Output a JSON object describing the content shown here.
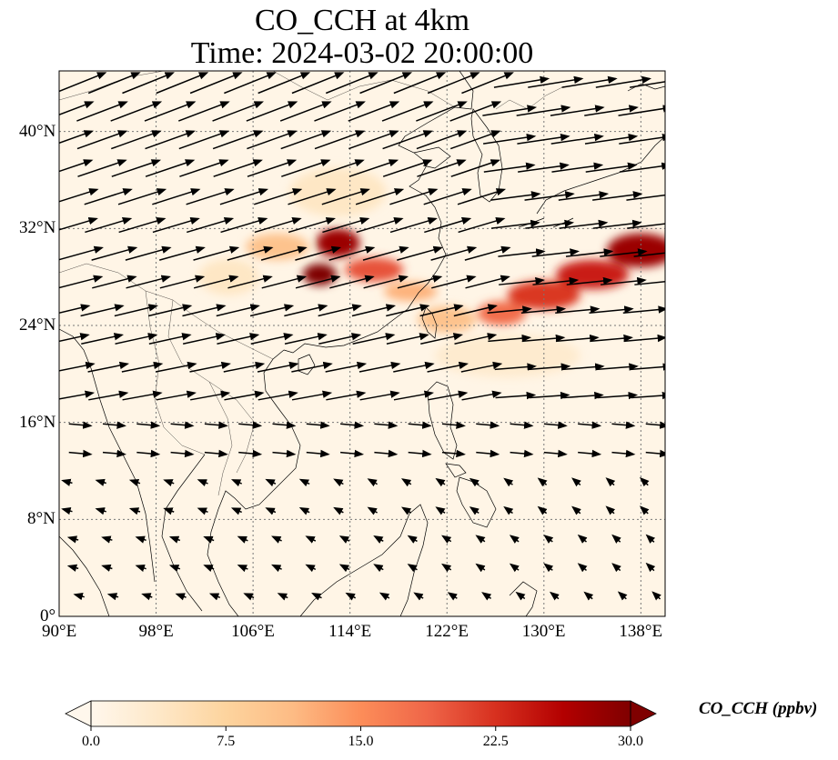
{
  "title": {
    "line1": "CO_CCH at 4km",
    "line2": "Time: 2024-03-02 20:00:00"
  },
  "map": {
    "projection": "PlateCarree",
    "lon_range": [
      90,
      140
    ],
    "lat_range": [
      0,
      45
    ],
    "gridlines": true,
    "lon_ticks": [
      {
        "value": 90,
        "label": "90°E"
      },
      {
        "value": 98,
        "label": "98°E"
      },
      {
        "value": 106,
        "label": "106°E"
      },
      {
        "value": 114,
        "label": "114°E"
      },
      {
        "value": 122,
        "label": "122°E"
      },
      {
        "value": 130,
        "label": "130°E"
      },
      {
        "value": 138,
        "label": "138°E"
      }
    ],
    "lat_ticks": [
      {
        "value": 0,
        "label": "0°"
      },
      {
        "value": 8,
        "label": "8°N"
      },
      {
        "value": 16,
        "label": "16°N"
      },
      {
        "value": 24,
        "label": "24°N"
      },
      {
        "value": 32,
        "label": "32°N"
      },
      {
        "value": 40,
        "label": "40°N"
      }
    ],
    "plumes": [
      {
        "lon": 111.5,
        "lat": 28.2,
        "lon_radius": 1.4,
        "lat_radius": 0.9,
        "value": 30
      },
      {
        "lon": 113.0,
        "lat": 30.8,
        "lon_radius": 1.8,
        "lat_radius": 1.2,
        "value": 28
      },
      {
        "lon": 116.0,
        "lat": 28.6,
        "lon_radius": 2.4,
        "lat_radius": 1.0,
        "value": 20
      },
      {
        "lon": 108.0,
        "lat": 30.5,
        "lon_radius": 2.6,
        "lat_radius": 1.1,
        "value": 10
      },
      {
        "lon": 119.0,
        "lat": 26.8,
        "lon_radius": 2.2,
        "lat_radius": 0.8,
        "value": 12
      },
      {
        "lon": 122.0,
        "lat": 24.5,
        "lon_radius": 2.4,
        "lat_radius": 1.1,
        "value": 10
      },
      {
        "lon": 126.5,
        "lat": 25.0,
        "lon_radius": 2.0,
        "lat_radius": 1.0,
        "value": 18
      },
      {
        "lon": 130.0,
        "lat": 26.5,
        "lon_radius": 3.0,
        "lat_radius": 1.2,
        "value": 22
      },
      {
        "lon": 134.0,
        "lat": 28.2,
        "lon_radius": 3.0,
        "lat_radius": 1.2,
        "value": 24
      },
      {
        "lon": 138.0,
        "lat": 30.2,
        "lon_radius": 2.8,
        "lat_radius": 1.4,
        "value": 28
      },
      {
        "lon": 113.0,
        "lat": 35.0,
        "lon_radius": 4.0,
        "lat_radius": 2.0,
        "value": 4
      },
      {
        "lon": 127.0,
        "lat": 21.5,
        "lon_radius": 6.0,
        "lat_radius": 1.8,
        "value": 3
      },
      {
        "lon": 104.0,
        "lat": 28.0,
        "lon_radius": 2.5,
        "lat_radius": 1.5,
        "value": 4
      }
    ]
  },
  "wind": {
    "arrow_color": "#000000"
  },
  "colorbar": {
    "label": "CO_CCH (ppbv)",
    "cmap": "OrRd",
    "range": [
      0,
      30
    ],
    "extend": "both",
    "ticks": [
      {
        "value": 0,
        "label": "0.0"
      },
      {
        "value": 7.5,
        "label": "7.5"
      },
      {
        "value": 15,
        "label": "15.0"
      },
      {
        "value": 22.5,
        "label": "22.5"
      },
      {
        "value": 30,
        "label": "30.0"
      }
    ],
    "colors": [
      "#fff7ec",
      "#fee8c8",
      "#fdd49e",
      "#fdbb84",
      "#fc8d59",
      "#ef6548",
      "#d7301f",
      "#b30000",
      "#7f0000"
    ]
  }
}
